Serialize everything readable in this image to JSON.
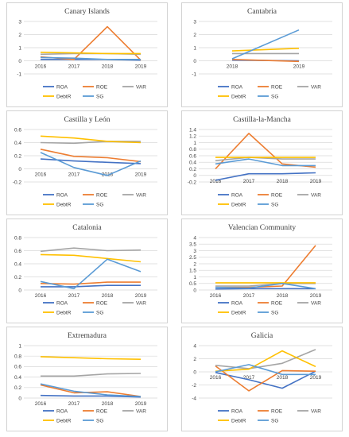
{
  "colors": {
    "ROA": "#4472C4",
    "ROE": "#ED7D31",
    "VAR": "#A5A5A5",
    "DebtR": "#FFC000",
    "SG": "#5B9BD5"
  },
  "legend": [
    "ROA",
    "ROE",
    "VAR",
    "DebtR",
    "SG"
  ],
  "chart_data": [
    {
      "type": "line",
      "title": "Canary Islands",
      "categories": [
        "2016",
        "2017",
        "2018",
        "2019"
      ],
      "yticks": [
        "-1",
        "0",
        "1",
        "2",
        "3"
      ],
      "ylim": [
        -1,
        3
      ],
      "series": [
        {
          "name": "ROA",
          "values": [
            0.1,
            0.1,
            0.1,
            0.05
          ]
        },
        {
          "name": "ROE",
          "values": [
            0.3,
            0.1,
            2.6,
            0.05
          ]
        },
        {
          "name": "VAR",
          "values": [
            0.5,
            0.55,
            0.55,
            0.5
          ]
        },
        {
          "name": "DebtR",
          "values": [
            0.65,
            0.6,
            0.55,
            0.55
          ]
        },
        {
          "name": "SG",
          "values": [
            0.25,
            0.2,
            0.1,
            0.1
          ]
        }
      ]
    },
    {
      "type": "line",
      "title": "Cantabria",
      "categories": [
        "2018",
        "2019"
      ],
      "yticks": [
        "-1",
        "0",
        "1",
        "2",
        "3"
      ],
      "ylim": [
        -1,
        3
      ],
      "series": [
        {
          "name": "ROA",
          "values": [
            0.05,
            0.0
          ]
        },
        {
          "name": "ROE",
          "values": [
            0.1,
            -0.05
          ]
        },
        {
          "name": "VAR",
          "values": [
            0.55,
            0.55
          ]
        },
        {
          "name": "DebtR",
          "values": [
            0.75,
            0.95
          ]
        },
        {
          "name": "SG",
          "values": [
            0.15,
            2.35
          ]
        }
      ]
    },
    {
      "type": "line",
      "title": "Castilla y León",
      "categories": [
        "2016",
        "2017",
        "2018",
        "2019"
      ],
      "yticks": [
        "-0.2",
        "0",
        "0.2",
        "0.4",
        "0.6"
      ],
      "ylim": [
        -0.2,
        0.6
      ],
      "series": [
        {
          "name": "ROA",
          "values": [
            0.15,
            0.12,
            0.1,
            0.08
          ]
        },
        {
          "name": "ROE",
          "values": [
            0.3,
            0.19,
            0.17,
            0.11
          ]
        },
        {
          "name": "VAR",
          "values": [
            0.4,
            0.39,
            0.42,
            0.42
          ]
        },
        {
          "name": "DebtR",
          "values": [
            0.5,
            0.47,
            0.42,
            0.4
          ]
        },
        {
          "name": "SG",
          "values": [
            0.25,
            0.02,
            -0.1,
            0.12
          ]
        }
      ]
    },
    {
      "type": "line",
      "title": "Castilla-la-Mancha",
      "categories": [
        "2016",
        "2017",
        "2018",
        "2019"
      ],
      "yticks": [
        "-0.2",
        "0",
        "0.2",
        "0.4",
        "0.6",
        "0.8",
        "1",
        "1.2",
        "1.4"
      ],
      "ylim": [
        -0.2,
        1.4
      ],
      "series": [
        {
          "name": "ROA",
          "values": [
            -0.15,
            0.05,
            0.05,
            0.08
          ]
        },
        {
          "name": "ROE",
          "values": [
            0.2,
            1.28,
            0.35,
            0.25
          ]
        },
        {
          "name": "VAR",
          "values": [
            0.45,
            0.55,
            0.5,
            0.5
          ]
        },
        {
          "name": "DebtR",
          "values": [
            0.55,
            0.55,
            0.55,
            0.55
          ]
        },
        {
          "name": "SG",
          "values": [
            0.35,
            0.5,
            0.3,
            0.3
          ]
        }
      ]
    },
    {
      "type": "line",
      "title": "Catalonia",
      "categories": [
        "2016",
        "2017",
        "2018",
        "2019"
      ],
      "yticks": [
        "0",
        "0.2",
        "0.4",
        "0.6",
        "0.8"
      ],
      "ylim": [
        0,
        0.8
      ],
      "series": [
        {
          "name": "ROA",
          "values": [
            0.05,
            0.05,
            0.07,
            0.07
          ]
        },
        {
          "name": "ROE",
          "values": [
            0.1,
            0.09,
            0.12,
            0.12
          ]
        },
        {
          "name": "VAR",
          "values": [
            0.59,
            0.64,
            0.6,
            0.61
          ]
        },
        {
          "name": "DebtR",
          "values": [
            0.54,
            0.53,
            0.48,
            0.43
          ]
        },
        {
          "name": "SG",
          "values": [
            0.13,
            0.02,
            0.47,
            0.28
          ]
        }
      ]
    },
    {
      "type": "line",
      "title": "Valencian Community",
      "categories": [
        "2016",
        "2017",
        "2018",
        "2019"
      ],
      "yticks": [
        "0",
        "0.5",
        "1",
        "1.5",
        "2",
        "2.5",
        "3",
        "3.5",
        "4"
      ],
      "ylim": [
        0,
        4
      ],
      "series": [
        {
          "name": "ROA",
          "values": [
            0.08,
            0.1,
            0.1,
            0.1
          ]
        },
        {
          "name": "ROE",
          "values": [
            0.2,
            0.2,
            0.3,
            3.4
          ]
        },
        {
          "name": "VAR",
          "values": [
            0.3,
            0.3,
            0.5,
            0.5
          ]
        },
        {
          "name": "DebtR",
          "values": [
            0.55,
            0.55,
            0.55,
            0.55
          ]
        },
        {
          "name": "SG",
          "values": [
            0.2,
            0.15,
            0.5,
            0.1
          ]
        }
      ]
    },
    {
      "type": "line",
      "title": "Extremadura",
      "categories": [
        "2016",
        "2017",
        "2018",
        "2019"
      ],
      "yticks": [
        "0",
        "0.2",
        "0.4",
        "0.6",
        "0.8",
        "1"
      ],
      "ylim": [
        0,
        1
      ],
      "series": [
        {
          "name": "ROA",
          "values": [
            0.05,
            0.04,
            0.04,
            0.02
          ]
        },
        {
          "name": "ROE",
          "values": [
            0.25,
            0.1,
            0.12,
            0.03
          ]
        },
        {
          "name": "VAR",
          "values": [
            0.42,
            0.42,
            0.46,
            0.47
          ]
        },
        {
          "name": "DebtR",
          "values": [
            0.79,
            0.77,
            0.75,
            0.74
          ]
        },
        {
          "name": "SG",
          "values": [
            0.27,
            0.13,
            0.06,
            0.03
          ]
        }
      ]
    },
    {
      "type": "line",
      "title": "Galicia",
      "categories": [
        "2016",
        "2017",
        "2018",
        "2019"
      ],
      "yticks": [
        "-4",
        "-2",
        "0",
        "2",
        "4"
      ],
      "ylim": [
        -4,
        4
      ],
      "series": [
        {
          "name": "ROA",
          "values": [
            -0.1,
            -1.2,
            -2.5,
            0.1
          ]
        },
        {
          "name": "ROE",
          "values": [
            0.9,
            -2.9,
            0.2,
            0.1
          ]
        },
        {
          "name": "VAR",
          "values": [
            1.0,
            0.5,
            1.3,
            3.4
          ]
        },
        {
          "name": "DebtR",
          "values": [
            0.1,
            0.4,
            3.2,
            0.8
          ]
        },
        {
          "name": "SG",
          "values": [
            0.0,
            1.1,
            -0.4,
            -0.4
          ]
        }
      ]
    }
  ]
}
